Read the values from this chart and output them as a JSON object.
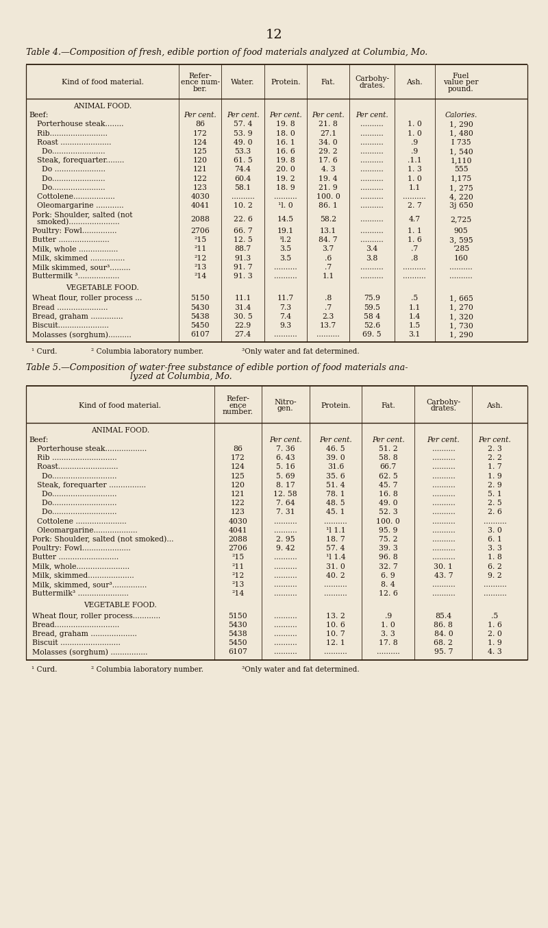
{
  "page_number": "12",
  "bg_color": "#f0e8d8",
  "text_color": "#1a1008",
  "table4_title": "Table 4.—Composition of fresh, edible portion of food materials analyzed at Columbia, Mo.",
  "table5_title_line1": "Table 5.—Composition of water-free substance of edible portion of food materials ana-",
  "table5_title_line2": "lyzed at Columbia, Mo.",
  "t4_headers": [
    "Kind of food material.",
    "Refer-\nence num-\nber.",
    "Water.",
    "Protein.",
    "Fat.",
    "Carbohy-\ndrates.",
    "Ash.",
    "Fuel\nvalue per\npound."
  ],
  "t4_cw": [
    0.305,
    0.085,
    0.085,
    0.085,
    0.085,
    0.09,
    0.08,
    0.105
  ],
  "t5_headers": [
    "Kind of food material.",
    "Refer-\nence\nnumber.",
    "Nitro-\ngen.",
    "Protein.",
    "Fat.",
    "Carbohy-\ndrates.",
    "Ash."
  ],
  "t5_cw": [
    0.375,
    0.095,
    0.095,
    0.105,
    0.105,
    0.115,
    0.09
  ],
  "t4_animal_data": [
    [
      "    Porterhouse steak........",
      "86",
      "57. 4",
      "19. 8",
      "21. 8",
      "..........",
      "1. 0",
      "1, 290"
    ],
    [
      "    Rib.........................",
      "172",
      "53. 9",
      "18. 0",
      "27.1",
      "..........",
      "1. 0",
      "1, 480"
    ],
    [
      "    Roast ......................",
      "124",
      "49. 0",
      "16. 1",
      "34. 0",
      "..........",
      ".9",
      "I 735"
    ],
    [
      "      Do.......................",
      "125",
      "53.3",
      "16. 6",
      "29. 2",
      "..........",
      ".9",
      "1, 540"
    ],
    [
      "    Steak, forequarter........",
      "120",
      "61. 5",
      "19. 8",
      "17. 6",
      "..........",
      ".1.1",
      "1,110"
    ],
    [
      "      Do ......................",
      "121",
      "74.4",
      "20. 0",
      "4. 3",
      "..........",
      "1. 3",
      "555"
    ],
    [
      "      Do.......................",
      "122",
      "60.4",
      "19. 2",
      "19. 4",
      "..........",
      "1. 0",
      "1,175"
    ],
    [
      "      Do.......................",
      "123",
      "58.1",
      "18. 9",
      "21. 9",
      "..........",
      "1.1",
      "1, 275"
    ],
    [
      "    Cottolene..................",
      "4030",
      "..........",
      "..........",
      "100. 0",
      "..........",
      "..........",
      "4, 220"
    ],
    [
      "    Oleomargarine ............",
      "4041",
      "10. 2",
      "¹l. 0",
      "86. 1",
      "..........",
      "2. 7",
      "3j 650"
    ]
  ],
  "t4_pork": [
    "  Pork: Shoulder, salted (not",
    "    smoked)......................",
    "2088",
    "22. 6",
    "14.5",
    "58.2",
    "..........",
    "4.7",
    "2,725"
  ],
  "t4_animal_data2": [
    [
      "  Poultry: Fowl...............",
      "2706",
      "66. 7",
      "19.1",
      "13.1",
      "..........",
      "1. 1",
      "905"
    ],
    [
      "  Butter ......................",
      "²15",
      "12. 5",
      "¹l.2",
      "84. 7",
      "..........",
      "1. 6",
      "3, 595"
    ],
    [
      "  Milk, whole .................",
      "²11",
      "88.7",
      "3.5",
      "3.7",
      "3.4",
      ".7",
      "’285"
    ],
    [
      "  Milk, skimmed ...............",
      "²12",
      "91.3",
      "3.5",
      ".6",
      "3.8",
      ".8",
      "160"
    ],
    [
      "  Milk skimmed, sour³.........",
      "²13",
      "91. 7",
      "..........",
      ".7",
      "..........",
      "..........",
      ".........."
    ],
    [
      "  Buttermilk ³..................",
      "²14",
      "91. 3",
      "..........",
      "1.1",
      "..........",
      "..........",
      ".........."
    ]
  ],
  "t4_veg_data": [
    [
      "  Wheat flour, roller process ...",
      "5150",
      "11.1",
      "11.7",
      ".8",
      "75.9",
      ".5",
      "1, 665"
    ],
    [
      "  Bread ......................",
      "5430",
      "31.4",
      "7.3",
      ".7",
      "59.5",
      "1.1",
      "1, 270"
    ],
    [
      "  Bread, graham ..............",
      "5438",
      "30. 5",
      "7.4",
      "2.3",
      "58 4",
      "1.4",
      "1, 320"
    ],
    [
      "  Biscuit......................",
      "5450",
      "22.9",
      "9.3",
      "13.7",
      "52.6",
      "1.5",
      "1, 730"
    ],
    [
      "  Molasses (sorghum)..........",
      "6107",
      "27.4",
      "..........",
      "..........",
      "69. 5",
      "3.1",
      "1, 290"
    ]
  ],
  "t4_footnotes": [
    "¹ Curd.",
    "² Columbia laboratory number.",
    "³Only water and fat determined."
  ],
  "t5_animal_data": [
    [
      "    Porterhouse steak..................",
      "86",
      "7. 36",
      "46. 5",
      "51. 2",
      "..........",
      "2. 3"
    ],
    [
      "    Rib ............................",
      "172",
      "6. 43",
      "39. 0",
      "58. 8",
      "..........",
      "2. 2"
    ],
    [
      "    Roast..........................",
      "124",
      "5. 16",
      "31.6",
      "66.7",
      "..........",
      "1. 7"
    ],
    [
      "      Do............................",
      "125",
      "5. 69",
      "35. 6",
      "62. 5",
      "..........",
      "1. 9"
    ],
    [
      "    Steak, forequarter ................",
      "120",
      "8. 17",
      "51. 4",
      "45. 7",
      "..........",
      "2. 9"
    ],
    [
      "      Do............................",
      "121",
      "12. 58",
      "78. 1",
      "16. 8",
      "..........",
      "5. 1"
    ],
    [
      "      Do............................",
      "122",
      "7. 64",
      "48. 5",
      "49. 0",
      "..........",
      "2. 5"
    ],
    [
      "      Do............................",
      "123",
      "7. 31",
      "45. 1",
      "52. 3",
      "..........",
      "2. 6"
    ],
    [
      "    Cottolene ......................",
      "4030",
      "..........",
      "..........",
      "100. 0",
      "..........",
      ".........."
    ],
    [
      "    Oleomargarine...................",
      "4041",
      "..........",
      "¹l 1.1",
      "95. 9",
      "..........",
      "3. 0"
    ],
    [
      "  Pork: Shoulder, salted (not smoked)...",
      "2088",
      "2. 95",
      "18. 7",
      "75. 2",
      "..........",
      "6. 1"
    ],
    [
      "  Poultry: Fowl.....................",
      "2706",
      "9. 42",
      "57. 4",
      "39. 3",
      "..........",
      "3. 3"
    ],
    [
      "  Butter ..........................",
      "²15",
      "..........",
      "¹l 1.4",
      "96. 8",
      "..........",
      "1. 8"
    ],
    [
      "  Milk, whole.......................",
      "²11",
      "..........",
      "31. 0",
      "32. 7",
      "30. 1",
      "6. 2"
    ],
    [
      "  Milk, skimmed....................",
      "²12",
      "..........",
      "40. 2",
      "6. 9",
      "43. 7",
      "9. 2"
    ],
    [
      "  Milk, skimmed, sour³...............",
      "²13",
      "..........",
      "..........",
      "8. 4",
      "..........",
      ".........."
    ],
    [
      "  Buttermilk³ ......................",
      "²14",
      "..........",
      "..........",
      "12. 6",
      "..........",
      ".........."
    ]
  ],
  "t5_veg_data": [
    [
      "  Wheat flour, roller process............",
      "5150",
      "..........",
      "13. 2",
      ".9",
      "85.4",
      ".5"
    ],
    [
      "  Bread............................",
      "5430",
      "..........",
      "10. 6",
      "1. 0",
      "86. 8",
      "1. 6"
    ],
    [
      "  Bread, graham ....................",
      "5438",
      "..........",
      "10. 7",
      "3. 3",
      "84. 0",
      "2. 0"
    ],
    [
      "  Biscuit ..........................",
      "5450",
      "..........",
      "12. 1",
      "17. 8",
      "68. 2",
      "1. 9"
    ],
    [
      "  Molasses (sorghum) ................",
      "6107",
      "..........",
      "..........",
      "..........",
      "95. 7",
      "4. 3"
    ]
  ],
  "t5_footnotes": [
    "¹ Curd.",
    "² Columbia laboratory number.",
    "³Only water and fat determined."
  ]
}
